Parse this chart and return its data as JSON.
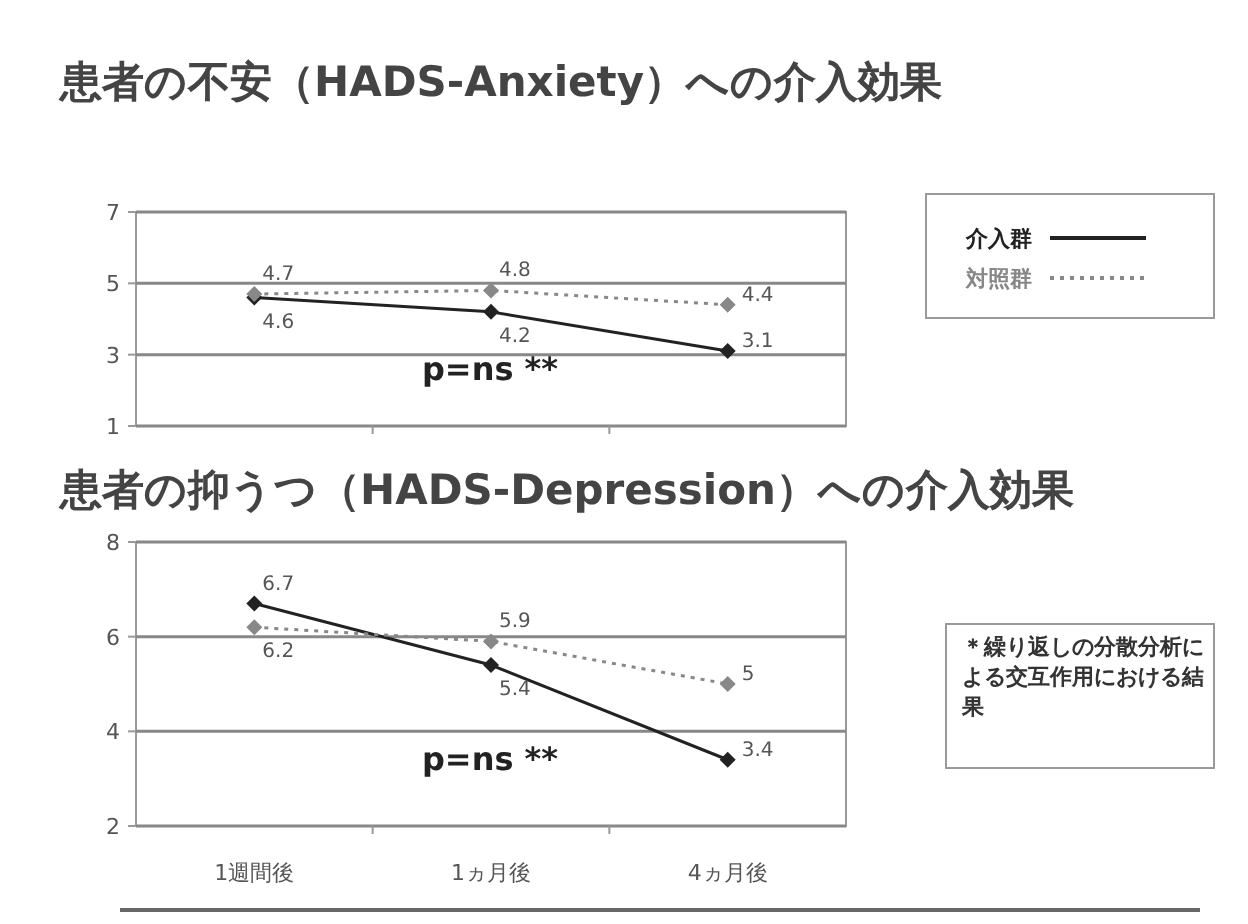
{
  "chart_data": [
    {
      "type": "line",
      "title": "患者の不安（HADS-Anxiety）への介入効果",
      "categories": [
        null,
        null,
        null
      ],
      "ylim": [
        1,
        7
      ],
      "yticks": [
        1,
        3,
        5,
        7
      ],
      "grid": "y",
      "legend": "right",
      "marker": "diamond",
      "series": [
        {
          "name": "介入群",
          "color": "#222222",
          "line_style": "solid",
          "values": [
            4.6,
            4.2,
            3.1
          ],
          "value_labels": [
            "4.6",
            "4.2",
            "3.1"
          ]
        },
        {
          "name": "対照群",
          "color": "#888888",
          "line_style": "dotted",
          "values": [
            4.7,
            4.8,
            4.4
          ],
          "value_labels": [
            "4.7",
            "4.8",
            "4.4"
          ]
        }
      ],
      "annotations": [
        "p=ns **"
      ]
    },
    {
      "type": "line",
      "title": "患者の抑うつ（HADS-Depression）への介入効果",
      "categories": [
        "1週間後",
        "1ヵ月後",
        "4ヵ月後"
      ],
      "ylim": [
        2,
        8
      ],
      "yticks": [
        2,
        4,
        6,
        8
      ],
      "grid": "y",
      "marker": "diamond",
      "series": [
        {
          "color": "#222222",
          "line_style": "solid",
          "values": [
            6.7,
            5.4,
            3.4
          ],
          "value_labels": [
            "6.7",
            "5.4",
            "3.4"
          ]
        },
        {
          "color": "#888888",
          "line_style": "dotted",
          "values": [
            6.2,
            5.9,
            5
          ],
          "value_labels": [
            "6.2",
            "5.9",
            "5"
          ]
        }
      ],
      "annotations": [
        "p=ns **",
        "＊繰り返しの分散分析による交互作用における結果"
      ]
    }
  ]
}
